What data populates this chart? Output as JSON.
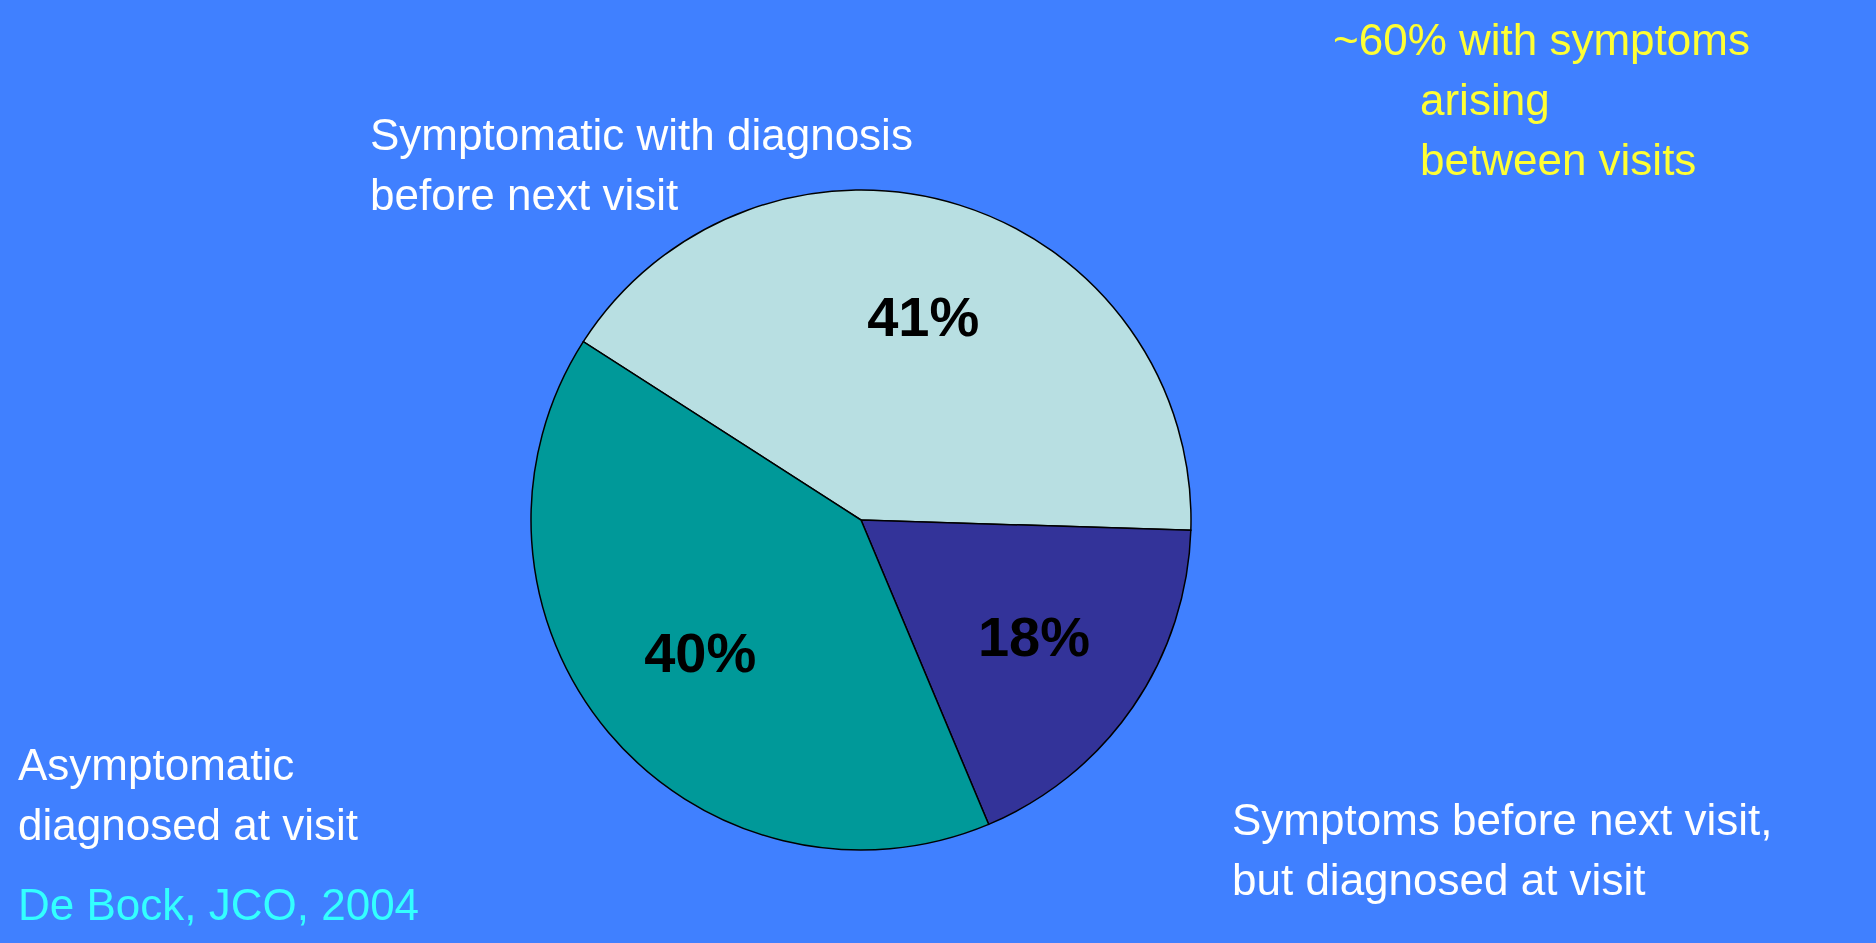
{
  "chart_data": {
    "type": "pie",
    "categories": [
      "Symptomatic with diagnosis before next visit",
      "Symptoms before next visit, but diagnosed at visit",
      "Asymptomatic diagnosed at visit"
    ],
    "values": [
      41,
      18,
      40
    ],
    "colors": [
      "#b8dfe2",
      "#333399",
      "#009999"
    ],
    "value_labels": [
      "41%",
      "18%",
      "40%"
    ],
    "annotations": [
      "~60% with symptoms arising between visits",
      "De Bock, JCO, 2004"
    ]
  }
}
